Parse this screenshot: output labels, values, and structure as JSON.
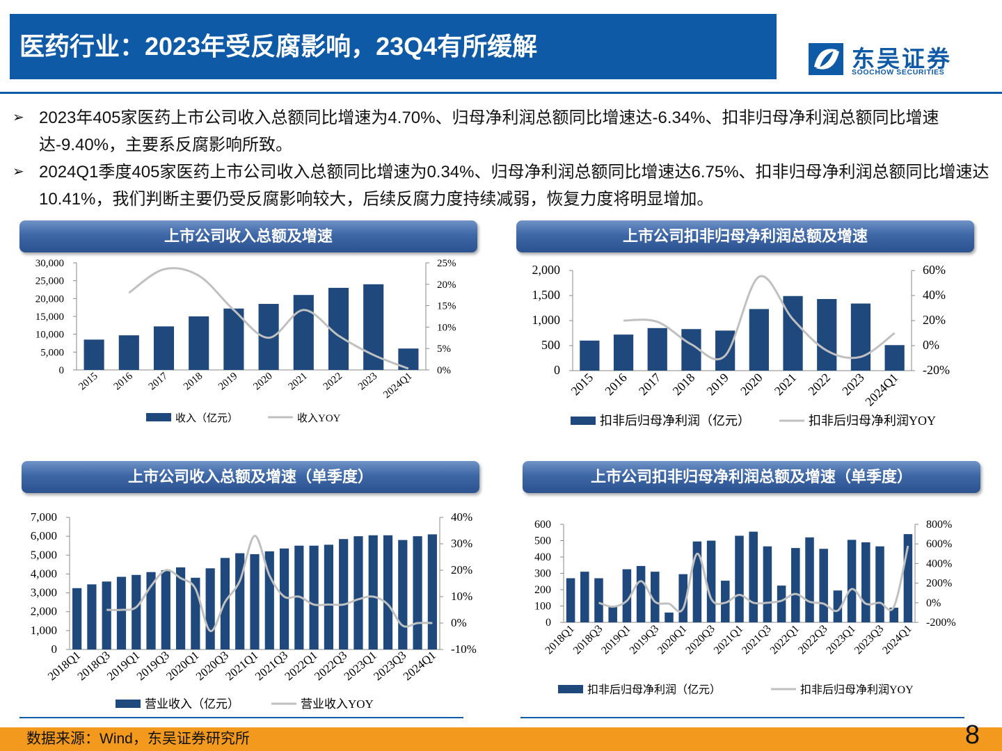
{
  "header": {
    "title": "医药行业：2023年受反腐影响，23Q4有所缓解",
    "logo_cn": "东吴证券",
    "logo_en": "SOOCHOW SECURITIES"
  },
  "bullets": [
    "2023年405家医药上市公司收入总额同比增速为4.70%、归母净利润总额同比增速达-6.34%、扣非归母净利润总额同比增速达-9.40%，主要系反腐影响所致。",
    "2024Q1季度405家医药上市公司收入总额同比增速为0.34%、归母净利润总额同比增速达6.75%、扣非归母净利润总额同比增速达10.41%，我们判断主要仍受反腐影响较大，后续反腐力度持续减弱，恢复力度将明显增加。"
  ],
  "colors": {
    "bar": "#1f497d",
    "line": "#c0c0c0",
    "brand": "#0f5aa6",
    "footer": "#f39a1e"
  },
  "chart_data": [
    {
      "type": "bar+line",
      "title": "上市公司收入总额及增速",
      "categories": [
        "2015",
        "2016",
        "2017",
        "2018",
        "2019",
        "2020",
        "2021",
        "2022",
        "2023",
        "2024Q1"
      ],
      "series": [
        {
          "name": "收入（亿元）",
          "type": "bar",
          "axis": "left",
          "values": [
            8500,
            9700,
            12200,
            15000,
            17200,
            18500,
            21000,
            23000,
            24000,
            6000
          ]
        },
        {
          "name": "收入YOY",
          "type": "line",
          "axis": "right",
          "values": [
            null,
            18,
            23.5,
            22,
            14,
            7.5,
            14,
            8,
            3.5,
            0.3
          ]
        }
      ],
      "left_axis": {
        "ticks": [
          "0",
          "5,000",
          "10,000",
          "15,000",
          "20,000",
          "25,000",
          "30,000"
        ],
        "min": 0,
        "max": 30000
      },
      "right_axis": {
        "ticks": [
          "0%",
          "5%",
          "10%",
          "15%",
          "20%",
          "25%"
        ],
        "min": 0,
        "max": 25
      }
    },
    {
      "type": "bar+line",
      "title": "上市公司扣非归母净利润总额及增速",
      "categories": [
        "2015",
        "2016",
        "2017",
        "2018",
        "2019",
        "2020",
        "2021",
        "2022",
        "2023",
        "2024Q1"
      ],
      "series": [
        {
          "name": "扣非后归母净利润（亿元）",
          "type": "bar",
          "axis": "left",
          "values": [
            600,
            720,
            850,
            830,
            800,
            1230,
            1490,
            1430,
            1340,
            510
          ]
        },
        {
          "name": "扣非后归母净利润YOY",
          "type": "line",
          "axis": "right",
          "values": [
            null,
            20,
            19,
            1,
            -8,
            55,
            21,
            -4,
            -9,
            10
          ]
        }
      ],
      "left_axis": {
        "ticks": [
          "0",
          "500",
          "1,000",
          "1,500",
          "2,000"
        ],
        "min": 0,
        "max": 2000
      },
      "right_axis": {
        "ticks": [
          "-20%",
          "0%",
          "20%",
          "40%",
          "60%"
        ],
        "min": -20,
        "max": 60
      }
    },
    {
      "type": "bar+line",
      "title": "上市公司收入总额及增速（单季度）",
      "categories": [
        "2018Q1",
        "2018Q2",
        "2018Q3",
        "2018Q4",
        "2019Q1",
        "2019Q2",
        "2019Q3",
        "2019Q4",
        "2020Q1",
        "2020Q2",
        "2020Q3",
        "2020Q4",
        "2021Q1",
        "2021Q2",
        "2021Q3",
        "2021Q4",
        "2022Q1",
        "2022Q2",
        "2022Q3",
        "2022Q4",
        "2023Q1",
        "2023Q2",
        "2023Q3",
        "2023Q4",
        "2024Q1"
      ],
      "visible_tick_labels": [
        "2018Q1",
        "2018Q3",
        "2019Q1",
        "2019Q3",
        "2020Q1",
        "2020Q3",
        "2021Q1",
        "2021Q3",
        "2022Q1",
        "2022Q3",
        "2023Q1",
        "2023Q3",
        "2024Q1"
      ],
      "series": [
        {
          "name": "营业收入（亿元）",
          "type": "bar",
          "axis": "left",
          "values": [
            3250,
            3450,
            3600,
            3850,
            3950,
            4100,
            4200,
            4350,
            3800,
            4300,
            4850,
            5100,
            5050,
            5200,
            5350,
            5500,
            5500,
            5550,
            5850,
            6000,
            6050,
            6050,
            5800,
            6000,
            6100
          ]
        },
        {
          "name": "营业收入YOY",
          "type": "line",
          "axis": "right",
          "values": [
            null,
            null,
            5,
            5,
            6,
            14,
            20,
            17,
            13,
            -3,
            8,
            16,
            33,
            18,
            10,
            10,
            7,
            7,
            7,
            9,
            10,
            7,
            -1,
            0,
            0
          ]
        }
      ],
      "left_axis": {
        "ticks": [
          "0",
          "1,000",
          "2,000",
          "3,000",
          "4,000",
          "5,000",
          "6,000",
          "7,000"
        ],
        "min": 0,
        "max": 7000
      },
      "right_axis": {
        "ticks": [
          "-10%",
          "0%",
          "10%",
          "20%",
          "30%",
          "40%"
        ],
        "min": -10,
        "max": 40
      }
    },
    {
      "type": "bar+line",
      "title": "上市公司扣非归母净利润总额及增速（单季度）",
      "categories": [
        "2018Q1",
        "2018Q2",
        "2018Q3",
        "2018Q4",
        "2019Q1",
        "2019Q2",
        "2019Q3",
        "2019Q4",
        "2020Q1",
        "2020Q2",
        "2020Q3",
        "2020Q4",
        "2021Q1",
        "2021Q2",
        "2021Q3",
        "2021Q4",
        "2022Q1",
        "2022Q2",
        "2022Q3",
        "2022Q4",
        "2023Q1",
        "2023Q2",
        "2023Q3",
        "2023Q4",
        "2024Q1"
      ],
      "visible_tick_labels": [
        "2018Q1",
        "2018Q3",
        "2019Q1",
        "2019Q3",
        "2020Q1",
        "2020Q3",
        "2021Q1",
        "2021Q3",
        "2022Q1",
        "2022Q3",
        "2023Q1",
        "2023Q3",
        "2024Q1"
      ],
      "series": [
        {
          "name": "扣非后归母净利润（亿元）",
          "type": "bar",
          "axis": "left",
          "values": [
            270,
            310,
            270,
            100,
            325,
            345,
            310,
            60,
            295,
            495,
            500,
            255,
            530,
            555,
            465,
            225,
            455,
            520,
            450,
            195,
            505,
            490,
            465,
            90,
            540
          ]
        },
        {
          "name": "扣非后归母净利润YOY",
          "type": "line",
          "axis": "right",
          "values": [
            null,
            null,
            0,
            -40,
            20,
            220,
            10,
            -10,
            -60,
            500,
            40,
            0,
            80,
            0,
            0,
            20,
            90,
            10,
            -10,
            -80,
            140,
            -10,
            0,
            -40,
            580
          ]
        }
      ],
      "left_axis": {
        "ticks": [
          "0",
          "100",
          "200",
          "300",
          "400",
          "500",
          "600"
        ],
        "min": 0,
        "max": 600
      },
      "right_axis": {
        "ticks": [
          "-200%",
          "0%",
          "200%",
          "400%",
          "600%",
          "800%"
        ],
        "min": -200,
        "max": 800
      }
    }
  ],
  "footer": {
    "source": "数据来源：Wind，东吴证券研究所",
    "page_number": "8"
  }
}
